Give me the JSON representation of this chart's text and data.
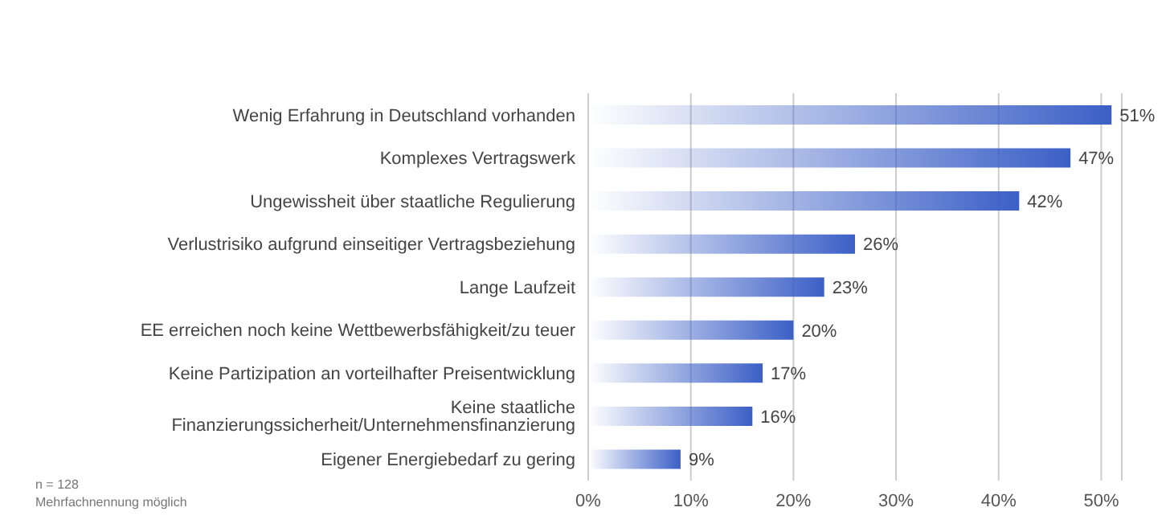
{
  "chart_data": {
    "type": "bar",
    "orientation": "horizontal",
    "categories": [
      "Wenig Erfahrung in Deutschland vorhanden",
      "Komplexes Vertragswerk",
      "Ungewissheit über staatliche Regulierung",
      "Verlustrisiko aufgrund einseitiger Vertragsbeziehung",
      "Lange Laufzeit",
      "EE erreichen noch keine Wettbewerbsfähigkeit/zu teuer",
      "Keine Partizipation an vorteilhafter Preisentwicklung",
      "Keine staatliche Finanzierungssicherheit/Unternehmensfinanzierung",
      "Eigener Energiebedarf zu gering"
    ],
    "values": [
      51,
      47,
      42,
      26,
      23,
      20,
      17,
      16,
      9
    ],
    "value_labels": [
      "51%",
      "47%",
      "42%",
      "26%",
      "23%",
      "20%",
      "17%",
      "16%",
      "9%"
    ],
    "color": "#3b5fc6",
    "xlim": [
      0,
      52
    ],
    "xticks": [
      {
        "value": 0,
        "label": "0%"
      },
      {
        "value": 10,
        "label": "10%"
      },
      {
        "value": 20,
        "label": "20%"
      },
      {
        "value": 30,
        "label": "30%"
      },
      {
        "value": 40,
        "label": "40%"
      },
      {
        "value": 50,
        "label": "50%"
      }
    ],
    "grid": "x",
    "annotations": [
      "n = 128",
      "Mehrfachnennung möglich"
    ]
  }
}
